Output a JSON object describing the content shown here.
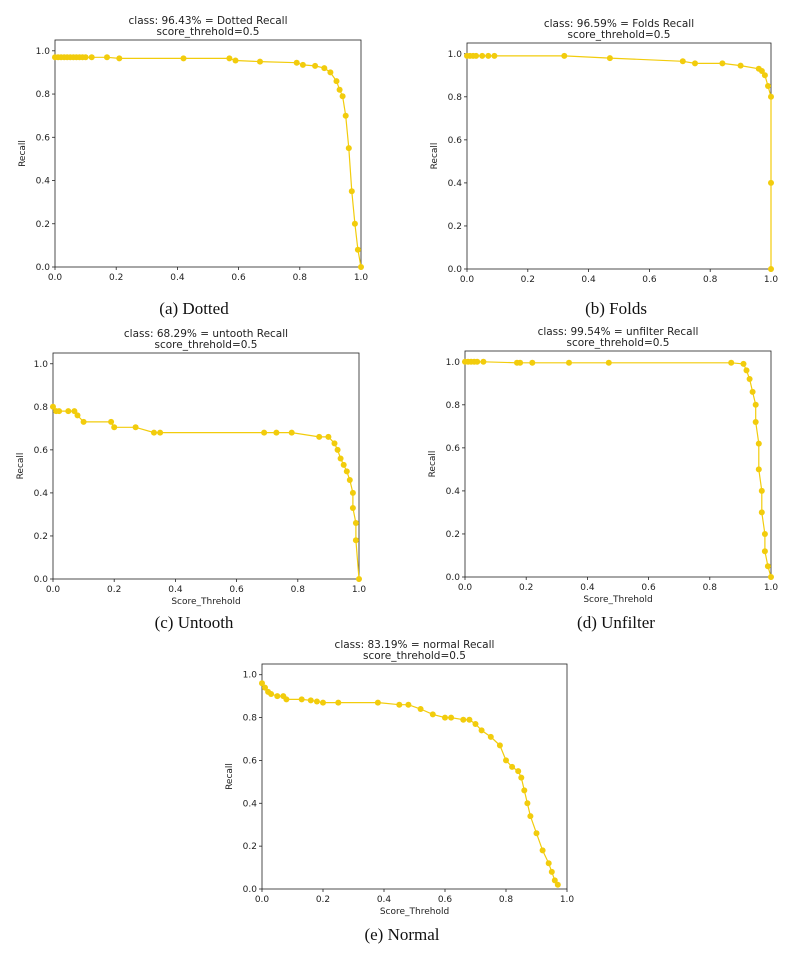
{
  "colors": {
    "series": "#f2cc0c",
    "axis": "#222222"
  },
  "chart_data": [
    {
      "type": "line",
      "title": "class: 96.43% = Dotted Recall",
      "subtitle": "score_threhold=0.5",
      "xlabel": "",
      "ylabel": "Recall",
      "caption": "(a) Dotted",
      "xlim": [
        0,
        1
      ],
      "ylim": [
        0,
        1.05
      ],
      "xticks": [
        "0.0",
        "0.2",
        "0.4",
        "0.6",
        "0.8",
        "1.0"
      ],
      "yticks": [
        "0.0",
        "0.2",
        "0.4",
        "0.6",
        "0.8",
        "1.0"
      ],
      "grid": false,
      "x": [
        0.0,
        0.01,
        0.02,
        0.03,
        0.04,
        0.05,
        0.06,
        0.07,
        0.08,
        0.09,
        0.1,
        0.12,
        0.17,
        0.21,
        0.42,
        0.57,
        0.59,
        0.67,
        0.79,
        0.81,
        0.85,
        0.88,
        0.9,
        0.92,
        0.93,
        0.94,
        0.95,
        0.96,
        0.97,
        0.98,
        0.99,
        1.0
      ],
      "y": [
        0.97,
        0.97,
        0.97,
        0.97,
        0.97,
        0.97,
        0.97,
        0.97,
        0.97,
        0.97,
        0.97,
        0.97,
        0.97,
        0.965,
        0.965,
        0.965,
        0.955,
        0.95,
        0.945,
        0.935,
        0.93,
        0.92,
        0.9,
        0.86,
        0.82,
        0.79,
        0.7,
        0.55,
        0.35,
        0.2,
        0.08,
        0.0
      ]
    },
    {
      "type": "line",
      "title": "class: 96.59% = Folds Recall",
      "subtitle": "score_threhold=0.5",
      "xlabel": "",
      "ylabel": "Recall",
      "caption": "(b) Folds",
      "xlim": [
        0,
        1
      ],
      "ylim": [
        0,
        1.05
      ],
      "xticks": [
        "0.0",
        "0.2",
        "0.4",
        "0.6",
        "0.8",
        "1.0"
      ],
      "yticks": [
        "0.0",
        "0.2",
        "0.4",
        "0.6",
        "0.8",
        "1.0"
      ],
      "grid": false,
      "x": [
        0.0,
        0.01,
        0.02,
        0.03,
        0.05,
        0.07,
        0.09,
        0.32,
        0.47,
        0.71,
        0.75,
        0.84,
        0.9,
        0.96,
        0.97,
        0.98,
        0.99,
        1.0,
        1.0,
        1.0
      ],
      "y": [
        0.99,
        0.99,
        0.99,
        0.99,
        0.99,
        0.99,
        0.99,
        0.99,
        0.98,
        0.965,
        0.955,
        0.955,
        0.945,
        0.93,
        0.92,
        0.9,
        0.85,
        0.8,
        0.4,
        0.0
      ]
    },
    {
      "type": "line",
      "title": "class: 68.29% = untooth Recall",
      "subtitle": "score_threhold=0.5",
      "xlabel": "Score_Threhold",
      "ylabel": "Recall",
      "caption": "(c) Untooth",
      "xlim": [
        0,
        1
      ],
      "ylim": [
        0,
        1.05
      ],
      "xticks": [
        "0.0",
        "0.2",
        "0.4",
        "0.6",
        "0.8",
        "1.0"
      ],
      "yticks": [
        "0.0",
        "0.2",
        "0.4",
        "0.6",
        "0.8",
        "1.0"
      ],
      "grid": false,
      "x": [
        0.0,
        0.01,
        0.02,
        0.05,
        0.07,
        0.08,
        0.1,
        0.19,
        0.2,
        0.27,
        0.33,
        0.35,
        0.69,
        0.73,
        0.78,
        0.87,
        0.9,
        0.92,
        0.93,
        0.94,
        0.95,
        0.96,
        0.97,
        0.98,
        0.98,
        0.99,
        0.99,
        1.0
      ],
      "y": [
        0.8,
        0.78,
        0.78,
        0.78,
        0.78,
        0.76,
        0.73,
        0.73,
        0.705,
        0.705,
        0.68,
        0.68,
        0.68,
        0.68,
        0.68,
        0.66,
        0.66,
        0.63,
        0.6,
        0.56,
        0.53,
        0.5,
        0.46,
        0.4,
        0.33,
        0.26,
        0.18,
        0.0
      ]
    },
    {
      "type": "line",
      "title": "class: 99.54% = unfilter Recall",
      "subtitle": "score_threhold=0.5",
      "xlabel": "Score_Threhold",
      "ylabel": "Recall",
      "caption": "(d) Unfilter",
      "xlim": [
        0,
        1
      ],
      "ylim": [
        0,
        1.05
      ],
      "xticks": [
        "0.0",
        "0.2",
        "0.4",
        "0.6",
        "0.8",
        "1.0"
      ],
      "yticks": [
        "0.0",
        "0.2",
        "0.4",
        "0.6",
        "0.8",
        "1.0"
      ],
      "grid": false,
      "x": [
        0.0,
        0.01,
        0.02,
        0.03,
        0.04,
        0.06,
        0.17,
        0.18,
        0.22,
        0.34,
        0.47,
        0.87,
        0.91,
        0.92,
        0.93,
        0.94,
        0.95,
        0.95,
        0.96,
        0.96,
        0.97,
        0.97,
        0.98,
        0.98,
        0.99,
        1.0
      ],
      "y": [
        1.0,
        1.0,
        1.0,
        1.0,
        1.0,
        1.0,
        0.995,
        0.995,
        0.995,
        0.995,
        0.995,
        0.995,
        0.99,
        0.96,
        0.92,
        0.86,
        0.8,
        0.72,
        0.62,
        0.5,
        0.4,
        0.3,
        0.2,
        0.12,
        0.05,
        0.0
      ]
    },
    {
      "type": "line",
      "title": "class: 83.19% = normal Recall",
      "subtitle": "score_threhold=0.5",
      "xlabel": "Score_Threhold",
      "ylabel": "Recall",
      "caption": "(e) Normal",
      "xlim": [
        0,
        1
      ],
      "ylim": [
        0,
        1.05
      ],
      "xticks": [
        "0.0",
        "0.2",
        "0.4",
        "0.6",
        "0.8",
        "1.0"
      ],
      "yticks": [
        "0.0",
        "0.2",
        "0.4",
        "0.6",
        "0.8",
        "1.0"
      ],
      "grid": false,
      "x": [
        0.0,
        0.01,
        0.02,
        0.03,
        0.05,
        0.07,
        0.08,
        0.13,
        0.16,
        0.18,
        0.2,
        0.25,
        0.38,
        0.45,
        0.48,
        0.52,
        0.56,
        0.6,
        0.62,
        0.66,
        0.68,
        0.7,
        0.72,
        0.75,
        0.78,
        0.8,
        0.82,
        0.84,
        0.85,
        0.86,
        0.87,
        0.88,
        0.9,
        0.92,
        0.94,
        0.95,
        0.96,
        0.97
      ],
      "y": [
        0.96,
        0.94,
        0.92,
        0.91,
        0.9,
        0.9,
        0.885,
        0.885,
        0.88,
        0.875,
        0.87,
        0.87,
        0.87,
        0.86,
        0.86,
        0.84,
        0.815,
        0.8,
        0.8,
        0.79,
        0.79,
        0.77,
        0.74,
        0.71,
        0.67,
        0.6,
        0.57,
        0.55,
        0.52,
        0.46,
        0.4,
        0.34,
        0.26,
        0.18,
        0.12,
        0.08,
        0.04,
        0.02
      ]
    }
  ]
}
